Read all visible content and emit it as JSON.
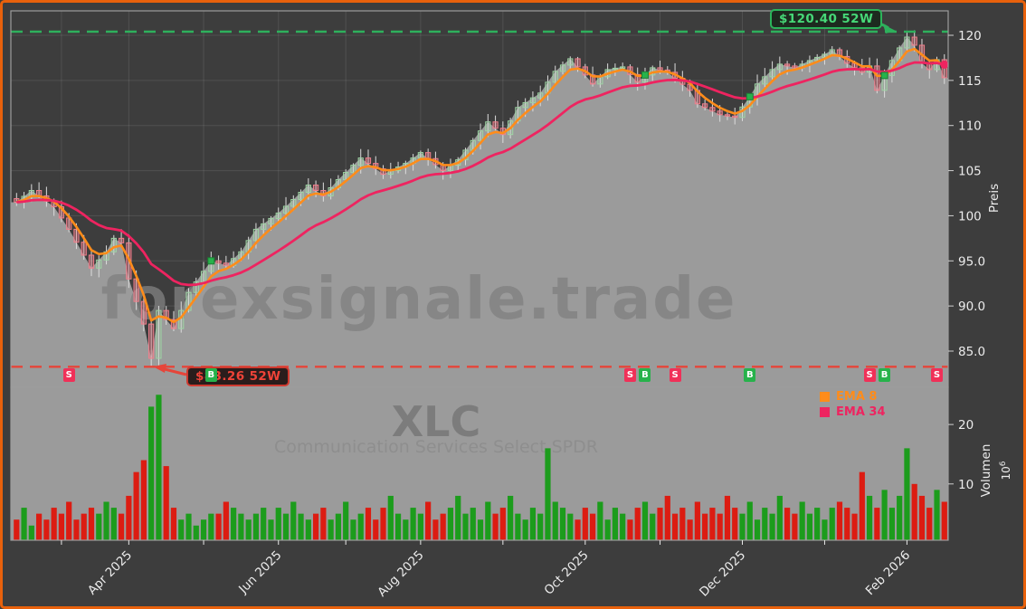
{
  "chart_data": {
    "type": "candlestick",
    "symbol": "XLC",
    "name": "Communication Services Select SPDR",
    "watermark": "forexsignale.trade",
    "annotations": {
      "high": {
        "label": "$120.40 52W",
        "value": 120.4
      },
      "low": {
        "label": "$83.26 52W",
        "value": 83.26
      }
    },
    "legend": [
      {
        "label": "EMA 8",
        "color": "#ff8c1a"
      },
      {
        "label": "EMA 34",
        "color": "#ee2460"
      }
    ],
    "price_axis": {
      "title": "Preis",
      "tick_labels": [
        "120",
        "115",
        "110",
        "105",
        "100",
        "95.0",
        "90.0",
        "85.0"
      ],
      "tick_values": [
        120,
        115,
        110,
        105,
        100,
        95,
        90,
        85
      ],
      "range_note": [
        81,
        122.7
      ]
    },
    "volume_axis": {
      "title": "Volumen",
      "scale_base": "10",
      "scale_exp": "6",
      "tick_labels": [
        "20",
        "10"
      ],
      "tick_values": [
        20,
        10
      ]
    },
    "x_axis": {
      "major": [
        {
          "index": 15,
          "label": "Apr 2025"
        },
        {
          "index": 35,
          "label": "Jun 2025"
        },
        {
          "index": 54,
          "label": "Aug 2025"
        },
        {
          "index": 76,
          "label": "Oct 2025"
        },
        {
          "index": 97,
          "label": "Dec 2025"
        },
        {
          "index": 119,
          "label": "Feb 2026"
        }
      ],
      "minor_indices": [
        6,
        25,
        44,
        65,
        86,
        108
      ]
    },
    "candles": {
      "count": 125,
      "close_anchors": [
        [
          0,
          101.5
        ],
        [
          2,
          102.8
        ],
        [
          5,
          101.0
        ],
        [
          7,
          98.5
        ],
        [
          10,
          94.2
        ],
        [
          12,
          96.0
        ],
        [
          13,
          97.5
        ],
        [
          14,
          97.0
        ],
        [
          15,
          93.0
        ],
        [
          17,
          88.0
        ],
        [
          18,
          84.2
        ],
        [
          19,
          89.5
        ],
        [
          21,
          87.5
        ],
        [
          23,
          91.5
        ],
        [
          26,
          95.0
        ],
        [
          28,
          94.5
        ],
        [
          30,
          96.0
        ],
        [
          32,
          98.5
        ],
        [
          35,
          100.3
        ],
        [
          37,
          101.8
        ],
        [
          39,
          103.4
        ],
        [
          41,
          102.2
        ],
        [
          43,
          104.0
        ],
        [
          46,
          106.4
        ],
        [
          49,
          104.6
        ],
        [
          52,
          105.8
        ],
        [
          54,
          107.0
        ],
        [
          57,
          105.0
        ],
        [
          59,
          106.2
        ],
        [
          62,
          109.4
        ],
        [
          63,
          110.4
        ],
        [
          65,
          109.0
        ],
        [
          67,
          112.0
        ],
        [
          70,
          113.6
        ],
        [
          72,
          116.0
        ],
        [
          74,
          117.4
        ],
        [
          76,
          115.6
        ],
        [
          77,
          114.6
        ],
        [
          79,
          116.2
        ],
        [
          81,
          116.5
        ],
        [
          83,
          114.8
        ],
        [
          85,
          116.4
        ],
        [
          87,
          115.9
        ],
        [
          90,
          113.9
        ],
        [
          91,
          112.4
        ],
        [
          94,
          111.2
        ],
        [
          96,
          110.9
        ],
        [
          98,
          113.2
        ],
        [
          99,
          114.6
        ],
        [
          101,
          116.2
        ],
        [
          102,
          116.8
        ],
        [
          104,
          116.4
        ],
        [
          106,
          117.2
        ],
        [
          108,
          117.9
        ],
        [
          109,
          118.4
        ],
        [
          111,
          116.9
        ],
        [
          113,
          115.9
        ],
        [
          114,
          116.6
        ],
        [
          115,
          113.9
        ],
        [
          117,
          117.2
        ],
        [
          118,
          118.6
        ],
        [
          119,
          119.8
        ],
        [
          120,
          118.9
        ],
        [
          121,
          116.9
        ],
        [
          122,
          116.2
        ],
        [
          123,
          117.3
        ],
        [
          124,
          115.3
        ]
      ],
      "wick_high_override": [
        119,
        120.4
      ],
      "wick_low_override": [
        18,
        83.26
      ]
    },
    "volumes": [
      4,
      6,
      3,
      5,
      4,
      6,
      5,
      7,
      4,
      5,
      6,
      5,
      7,
      6,
      5,
      8,
      12,
      14,
      23,
      25,
      13,
      6,
      4,
      5,
      3,
      4,
      5,
      5,
      7,
      6,
      5,
      4,
      5,
      6,
      4,
      6,
      5,
      7,
      5,
      4,
      5,
      6,
      4,
      5,
      7,
      4,
      5,
      6,
      4,
      6,
      8,
      5,
      4,
      6,
      5,
      7,
      4,
      5,
      6,
      8,
      5,
      6,
      4,
      7,
      5,
      6,
      8,
      5,
      4,
      6,
      5,
      16,
      7,
      6,
      5,
      4,
      6,
      5,
      7,
      4,
      6,
      5,
      4,
      6,
      7,
      5,
      6,
      8,
      5,
      6,
      4,
      7,
      5,
      6,
      5,
      8,
      6,
      5,
      7,
      4,
      6,
      5,
      8,
      6,
      5,
      7,
      5,
      6,
      4,
      6,
      7,
      6,
      5,
      12,
      8,
      6,
      9,
      6,
      8,
      16,
      10,
      8,
      6,
      9,
      7
    ],
    "volume_up_overrides": [
      18,
      19
    ],
    "signals": [
      {
        "type": "S",
        "index": 7
      },
      {
        "type": "B",
        "index": 26
      },
      {
        "type": "S",
        "index": 82
      },
      {
        "type": "B",
        "index": 84
      },
      {
        "type": "S",
        "index": 88
      },
      {
        "type": "B",
        "index": 98
      },
      {
        "type": "S",
        "index": 114
      },
      {
        "type": "B",
        "index": 116
      },
      {
        "type": "S",
        "index": 123
      }
    ],
    "colors": {
      "frame": "#e8610c",
      "background": "#3d3d3d",
      "area_fill": "#9b9b9b",
      "up_candle": "#9fd4a5",
      "down_candle": "#f07f8c",
      "wick": "#dcdcdc",
      "up_volume": "#1c9c1c",
      "down_volume": "#dc1c12",
      "ema8": "#ff8c1a",
      "ema34": "#ee2460",
      "high_line": "#2eb05c",
      "low_line": "#e6453a",
      "buy_badge": "#27b24b",
      "sell_badge": "#f03058",
      "tick_text": "#ececec"
    }
  }
}
